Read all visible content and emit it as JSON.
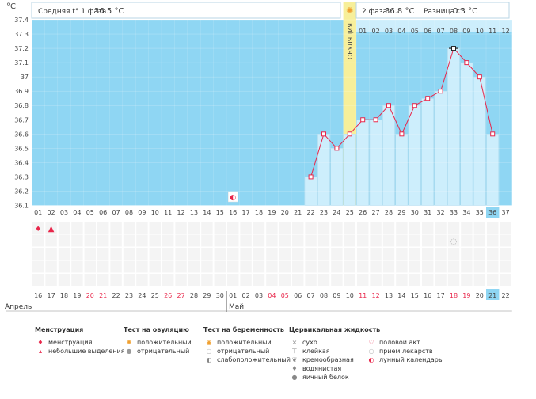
{
  "chart_data": {
    "type": "line",
    "ylabel": "°C",
    "ylim": [
      36.1,
      37.4
    ],
    "yticks": [
      "37.4",
      "37.3",
      "37.2",
      "37.1",
      "37",
      "36.9",
      "36.8",
      "36.7",
      "36.6",
      "36.5",
      "36.4",
      "36.3",
      "36.2",
      "36.1"
    ],
    "cycle_days": [
      "01",
      "02",
      "03",
      "04",
      "05",
      "06",
      "07",
      "08",
      "09",
      "10",
      "11",
      "12",
      "13",
      "14",
      "15",
      "16",
      "17",
      "18",
      "19",
      "20",
      "21",
      "22",
      "23",
      "24",
      "25",
      "26",
      "27",
      "28",
      "29",
      "30",
      "31",
      "32",
      "33",
      "34",
      "35",
      "36",
      "37"
    ],
    "phase2_days": [
      "01",
      "02",
      "03",
      "04",
      "05",
      "06",
      "07",
      "08",
      "09",
      "10",
      "11",
      "12"
    ],
    "dates": [
      "16",
      "17",
      "18",
      "19",
      "20",
      "21",
      "22",
      "23",
      "24",
      "25",
      "26",
      "27",
      "28",
      "29",
      "30",
      "01",
      "02",
      "03",
      "04",
      "05",
      "06",
      "07",
      "08",
      "09",
      "10",
      "11",
      "12",
      "13",
      "14",
      "15",
      "16",
      "17",
      "18",
      "19",
      "20",
      "21",
      "22"
    ],
    "red_dates_idx": [
      4,
      5,
      10,
      11,
      18,
      19,
      25,
      26,
      32,
      33
    ],
    "temperatures": [
      null,
      null,
      null,
      null,
      null,
      null,
      null,
      null,
      null,
      null,
      null,
      null,
      null,
      null,
      null,
      null,
      null,
      null,
      null,
      null,
      null,
      36.3,
      36.6,
      36.5,
      36.6,
      36.7,
      36.7,
      36.8,
      36.6,
      36.8,
      36.85,
      36.9,
      37.2,
      37.1,
      37.0,
      36.6,
      null
    ],
    "header": {
      "phase1_label": "Средняя t° 1 фаза",
      "phase1_value": "36.5 °C",
      "phase2_label": "2 фаза",
      "phase2_value": "36.8 °C",
      "diff_label": "Разница t°",
      "diff_value": "0.3 °C"
    },
    "ovulation_label": "ОВУЛЯЦИЯ",
    "ovulation_day_index": 24,
    "current_day_index": 35,
    "months": [
      "Апрель",
      "Май"
    ]
  },
  "legend": {
    "menstruation": {
      "title": "Менструация",
      "items": [
        "менструация",
        "небольшие выделения"
      ]
    },
    "ovulation_test": {
      "title": "Тест на овуляцию",
      "items": [
        "положительный",
        "отрицательный"
      ]
    },
    "pregnancy_test": {
      "title": "Тест на беременность",
      "items": [
        "положительный",
        "отрицательный",
        "слабоположительный"
      ]
    },
    "cervical": {
      "title": "Цервикальная жидкость",
      "items": [
        "сухо",
        "клейкая",
        "кремообразная",
        "водянистая",
        "яичный белок"
      ]
    },
    "other": {
      "items": [
        "половой акт",
        "прием лекарств",
        "лунный календарь"
      ]
    }
  },
  "colors": {
    "plot_bg": "#8fd6f3",
    "bar_fill": "#cdeefc",
    "line": "#e8264a",
    "ovulation": "#f7ef9a"
  }
}
